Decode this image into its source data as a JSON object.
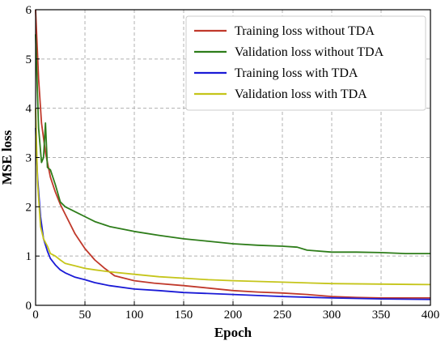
{
  "chart_data": {
    "type": "line",
    "title": "",
    "xlabel": "Epoch",
    "ylabel": "MSE loss",
    "xlim": [
      0,
      400
    ],
    "ylim": [
      0,
      6
    ],
    "xticks": [
      0,
      50,
      100,
      150,
      200,
      250,
      300,
      350,
      400
    ],
    "yticks": [
      0,
      1,
      2,
      3,
      4,
      5,
      6
    ],
    "grid": true,
    "legend_position": "top-right",
    "series": [
      {
        "name": "Training loss without TDA",
        "color": "#c0392b",
        "x": [
          0,
          3,
          6,
          10,
          15,
          20,
          25,
          30,
          40,
          50,
          60,
          70,
          80,
          100,
          120,
          150,
          175,
          200,
          225,
          250,
          275,
          300,
          325,
          350,
          375,
          400
        ],
        "y": [
          6.0,
          4.6,
          3.7,
          3.1,
          2.6,
          2.3,
          2.05,
          1.85,
          1.45,
          1.15,
          0.92,
          0.75,
          0.6,
          0.5,
          0.45,
          0.4,
          0.35,
          0.3,
          0.27,
          0.25,
          0.22,
          0.18,
          0.16,
          0.15,
          0.15,
          0.15
        ]
      },
      {
        "name": "Validation loss without TDA",
        "color": "#2e7d1a",
        "x": [
          0,
          3,
          6,
          8,
          10,
          12,
          15,
          20,
          25,
          30,
          40,
          50,
          60,
          75,
          100,
          125,
          150,
          175,
          200,
          225,
          250,
          265,
          275,
          300,
          325,
          350,
          375,
          400
        ],
        "y": [
          5.5,
          3.6,
          2.9,
          3.0,
          3.7,
          2.8,
          2.75,
          2.45,
          2.1,
          2.0,
          1.9,
          1.8,
          1.7,
          1.6,
          1.5,
          1.42,
          1.35,
          1.3,
          1.25,
          1.22,
          1.2,
          1.18,
          1.12,
          1.08,
          1.08,
          1.07,
          1.05,
          1.05
        ]
      },
      {
        "name": "Training loss with TDA",
        "color": "#1a1ad6",
        "x": [
          0,
          2,
          5,
          8,
          12,
          15,
          20,
          25,
          30,
          40,
          50,
          60,
          75,
          100,
          125,
          150,
          200,
          250,
          300,
          350,
          400
        ],
        "y": [
          3.6,
          2.6,
          1.8,
          1.35,
          1.1,
          0.95,
          0.82,
          0.72,
          0.66,
          0.57,
          0.52,
          0.46,
          0.4,
          0.33,
          0.3,
          0.26,
          0.22,
          0.18,
          0.15,
          0.13,
          0.12
        ]
      },
      {
        "name": "Validation loss with TDA",
        "color": "#c5c51a",
        "x": [
          0,
          2,
          5,
          8,
          12,
          15,
          20,
          25,
          30,
          40,
          50,
          60,
          75,
          100,
          125,
          150,
          175,
          200,
          250,
          300,
          350,
          400
        ],
        "y": [
          4.0,
          2.5,
          1.6,
          1.35,
          1.2,
          1.05,
          1.0,
          0.92,
          0.85,
          0.8,
          0.75,
          0.72,
          0.68,
          0.63,
          0.58,
          0.55,
          0.52,
          0.5,
          0.47,
          0.44,
          0.43,
          0.42
        ]
      }
    ]
  }
}
